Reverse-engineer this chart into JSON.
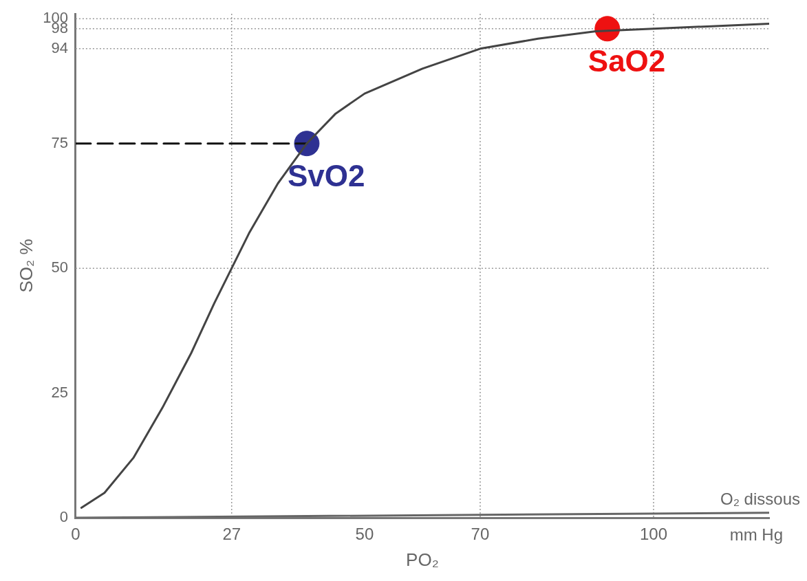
{
  "chart_data": {
    "type": "line",
    "xlabel": "PO₂",
    "ylabel": "SO₂ %",
    "xlim": [
      0,
      120
    ],
    "ylim": [
      0,
      101
    ],
    "xticks": [
      0,
      27,
      50,
      70,
      100
    ],
    "yticks": [
      0,
      25,
      50,
      75,
      94,
      98,
      100
    ],
    "grid": false,
    "legend": false,
    "annotations": [
      "mm Hg"
    ],
    "ref_lines": [
      {
        "axis": "y",
        "value": 50,
        "color": "#999999",
        "line_style": "dotted"
      },
      {
        "axis": "y",
        "value": 94,
        "color": "#999999",
        "line_style": "dotted"
      },
      {
        "axis": "y",
        "value": 98,
        "color": "#999999",
        "line_style": "dotted"
      },
      {
        "axis": "y",
        "value": 100,
        "color": "#999999",
        "line_style": "dotted"
      },
      {
        "axis": "x",
        "value": 27,
        "color": "#999999",
        "line_style": "dotted"
      },
      {
        "axis": "x",
        "value": 70,
        "color": "#999999",
        "line_style": "dotted"
      },
      {
        "axis": "x",
        "value": 100,
        "color": "#999999",
        "line_style": "dotted"
      }
    ],
    "series": [
      {
        "color": "#444444",
        "line_style": "solid",
        "marker": "none",
        "x": [
          1,
          5,
          10,
          15,
          20,
          24,
          27,
          30,
          35,
          40,
          45,
          50,
          60,
          70,
          80,
          90,
          100,
          110,
          120
        ],
        "values": [
          2,
          5,
          12,
          22,
          33,
          43,
          50,
          57,
          67,
          75,
          81,
          85,
          90,
          94,
          96,
          97.5,
          98,
          98.5,
          99
        ]
      },
      {
        "name": "O₂ dissous",
        "color": "#666666",
        "line_style": "solid",
        "marker": "none",
        "x": [
          0,
          120
        ],
        "values": [
          0,
          1
        ]
      },
      {
        "color": "#111111",
        "line_style": "dashed",
        "marker": "none",
        "x": [
          0,
          40
        ],
        "values": [
          75,
          75
        ]
      },
      {
        "type": "scatter",
        "name": "SvO2",
        "color": "#2e3192",
        "marker": "circle",
        "x": [
          40
        ],
        "values": [
          75
        ]
      },
      {
        "type": "scatter",
        "name": "SaO2",
        "color": "#ee1111",
        "marker": "circle",
        "x": [
          92
        ],
        "values": [
          98
        ]
      }
    ]
  }
}
